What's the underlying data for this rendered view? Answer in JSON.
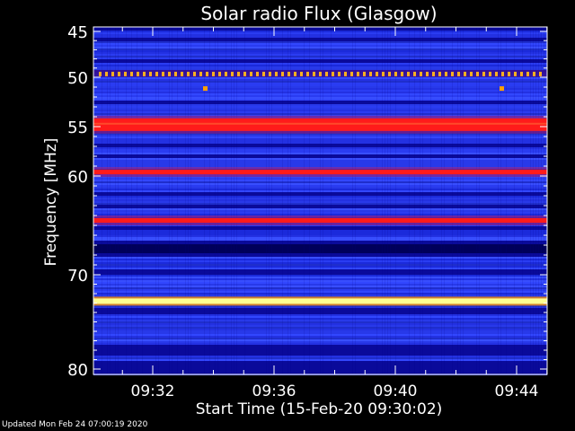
{
  "footer": {
    "updated": "Updated Mon Feb 24 07:00:19 2020"
  },
  "chart_data": {
    "type": "heatmap",
    "title": "Solar radio Flux (Glasgow)",
    "ylabel": "Frequency [MHz]",
    "xlabel": "Start Time (15-Feb-20 09:30:02)",
    "y_ticks": [
      45,
      50,
      55,
      60,
      70,
      80
    ],
    "y_tick_labels": [
      "45",
      "50",
      "55",
      "60",
      "70",
      "80"
    ],
    "x_ticks": [
      "09:32",
      "09:36",
      "09:40",
      "09:44"
    ],
    "x_minor_ticks_per_major": 4,
    "colors": {
      "background": "#000000",
      "low": "#0a0a9a",
      "mid": "#2b3cf0",
      "high_red": "#ff1b1b",
      "peak_yellow": "#ffff90",
      "dark_band": "#00005a"
    },
    "bands": [
      {
        "freq": 45.0,
        "intensity": "dark"
      },
      {
        "freq": 49.6,
        "intensity": "pulsed-yellow"
      },
      {
        "freq": 54.8,
        "intensity": "high"
      },
      {
        "freq": 59.6,
        "intensity": "high"
      },
      {
        "freq": 64.5,
        "intensity": "high"
      },
      {
        "freq": 67.5,
        "intensity": "dark"
      },
      {
        "freq": 72.8,
        "intensity": "peak"
      }
    ]
  }
}
